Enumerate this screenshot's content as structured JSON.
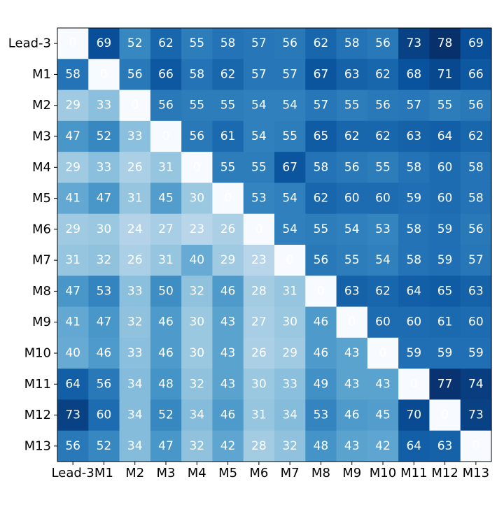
{
  "chart_data": {
    "type": "heatmap",
    "title": "",
    "xlabel": "",
    "ylabel": "",
    "rows": [
      "Lead-3",
      "M1",
      "M2",
      "M3",
      "M4",
      "M5",
      "M6",
      "M7",
      "M8",
      "M9",
      "M10",
      "M11",
      "M12",
      "M13"
    ],
    "columns": [
      "Lead-3",
      "M1",
      "M2",
      "M3",
      "M4",
      "M5",
      "M6",
      "M7",
      "M8",
      "M9",
      "M10",
      "M11",
      "M12",
      "M13"
    ],
    "values": [
      [
        0,
        69,
        52,
        62,
        55,
        58,
        57,
        56,
        62,
        58,
        56,
        73,
        78,
        69
      ],
      [
        58,
        0,
        56,
        66,
        58,
        62,
        57,
        57,
        67,
        63,
        62,
        68,
        71,
        66
      ],
      [
        29,
        33,
        0,
        56,
        55,
        55,
        54,
        54,
        57,
        55,
        56,
        57,
        55,
        56
      ],
      [
        47,
        52,
        33,
        0,
        56,
        61,
        54,
        55,
        65,
        62,
        62,
        63,
        64,
        62
      ],
      [
        29,
        33,
        26,
        31,
        0,
        55,
        55,
        67,
        58,
        56,
        55,
        58,
        60,
        58
      ],
      [
        41,
        47,
        31,
        45,
        30,
        0,
        53,
        54,
        62,
        60,
        60,
        59,
        60,
        58
      ],
      [
        29,
        30,
        24,
        27,
        23,
        26,
        0,
        54,
        55,
        54,
        53,
        58,
        59,
        56
      ],
      [
        31,
        32,
        26,
        31,
        40,
        29,
        23,
        0,
        56,
        55,
        54,
        58,
        59,
        57
      ],
      [
        47,
        53,
        33,
        50,
        32,
        46,
        28,
        31,
        0,
        63,
        62,
        64,
        65,
        63
      ],
      [
        41,
        47,
        32,
        46,
        30,
        43,
        27,
        30,
        46,
        0,
        60,
        60,
        61,
        60
      ],
      [
        40,
        46,
        33,
        46,
        30,
        43,
        26,
        29,
        46,
        43,
        0,
        59,
        59,
        59
      ],
      [
        64,
        56,
        34,
        48,
        32,
        43,
        30,
        33,
        49,
        43,
        43,
        0,
        77,
        74
      ],
      [
        73,
        60,
        34,
        52,
        34,
        46,
        31,
        34,
        53,
        46,
        45,
        70,
        0,
        73
      ],
      [
        56,
        52,
        34,
        47,
        32,
        42,
        28,
        32,
        48,
        43,
        42,
        64,
        63,
        0
      ]
    ],
    "colormap": "Blues",
    "value_range": [
      0,
      78
    ],
    "cell_text_color": "#ffffff",
    "grid": false,
    "legend": "none"
  }
}
